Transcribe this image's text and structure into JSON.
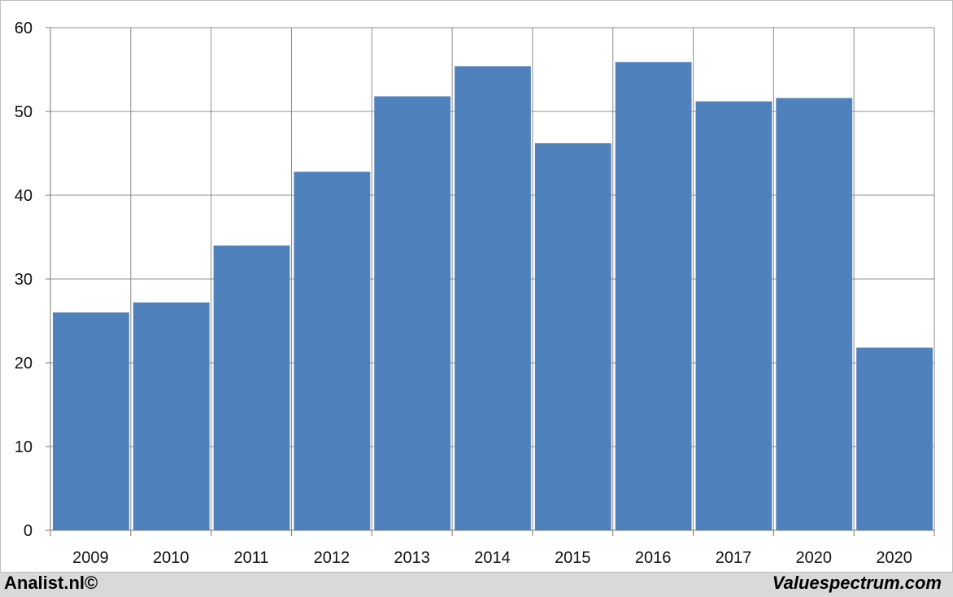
{
  "chart_data": {
    "type": "bar",
    "title": "",
    "xlabel": "",
    "ylabel": "",
    "categories": [
      "2009",
      "2010",
      "2011",
      "2012",
      "2013",
      "2014",
      "2015",
      "2016",
      "2017",
      "2020",
      "2020"
    ],
    "values": [
      26.0,
      27.2,
      34.0,
      42.8,
      51.8,
      55.4,
      46.2,
      55.9,
      51.2,
      51.6,
      21.8
    ],
    "ylim": [
      0,
      60
    ],
    "yticks": [
      "0",
      "10",
      "20",
      "30",
      "40",
      "50",
      "60"
    ],
    "grid": true,
    "bar_color": "#4f81bd",
    "grid_color": "#8c8c8c"
  },
  "footer": {
    "left": "Analist.nl©",
    "right": "Valuespectrum.com"
  }
}
